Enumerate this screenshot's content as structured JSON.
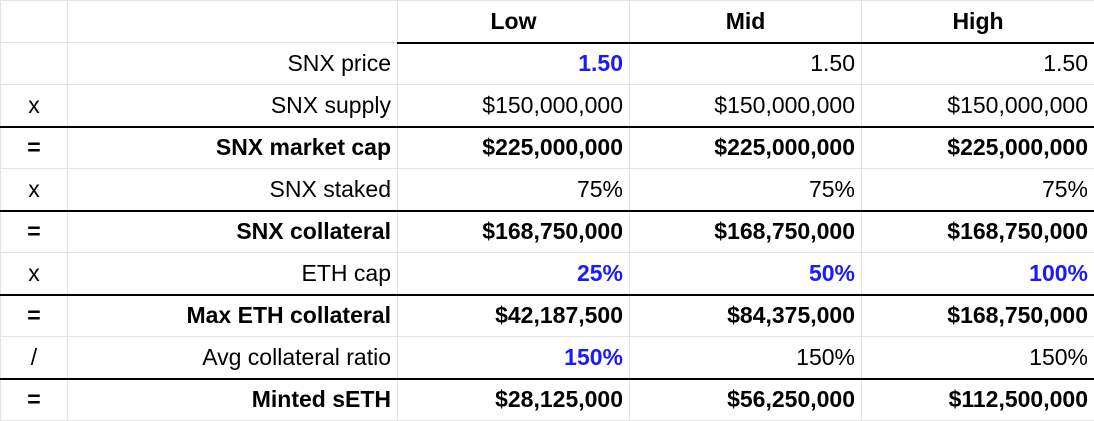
{
  "header": {
    "op": "",
    "label": "",
    "low": "Low",
    "mid": "Mid",
    "high": "High"
  },
  "rows": [
    {
      "op": "",
      "label": "SNX price",
      "low": "1.50",
      "mid": "1.50",
      "high": "1.50"
    },
    {
      "op": "x",
      "label": "SNX supply",
      "low": "$150,000,000",
      "mid": "$150,000,000",
      "high": "$150,000,000"
    },
    {
      "op": "=",
      "label": "SNX market cap",
      "low": "$225,000,000",
      "mid": "$225,000,000",
      "high": "$225,000,000"
    },
    {
      "op": "x",
      "label": "SNX staked",
      "low": "75%",
      "mid": "75%",
      "high": "75%"
    },
    {
      "op": "=",
      "label": "SNX collateral",
      "low": "$168,750,000",
      "mid": "$168,750,000",
      "high": "$168,750,000"
    },
    {
      "op": "x",
      "label": "ETH cap",
      "low": "25%",
      "mid": "50%",
      "high": "100%"
    },
    {
      "op": "=",
      "label": "Max ETH collateral",
      "low": "$42,187,500",
      "mid": "$84,375,000",
      "high": "$168,750,000"
    },
    {
      "op": "/",
      "label": "Avg collateral ratio",
      "low": "150%",
      "mid": "150%",
      "high": "150%"
    },
    {
      "op": "=",
      "label": "Minted sETH",
      "low": "$28,125,000",
      "mid": "$56,250,000",
      "high": "$112,500,000"
    }
  ],
  "colors": {
    "input_blue": "#1a1aff",
    "rule": "#000000",
    "grid": "#e2e2e2"
  }
}
